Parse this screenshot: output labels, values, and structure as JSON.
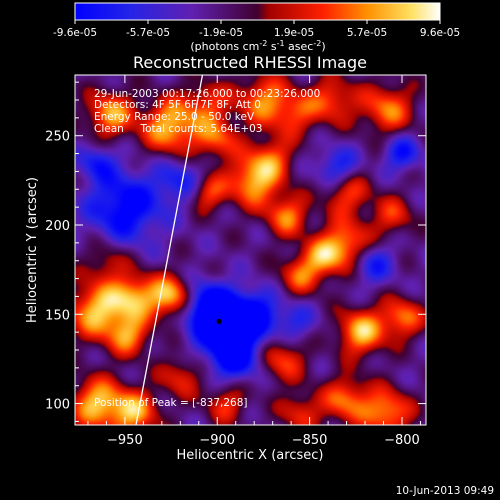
{
  "chart_data": {
    "type": "heatmap",
    "title": "Reconstructed RHESSI Image",
    "xlabel": "Heliocentric X (arcsec)",
    "ylabel": "Heliocentric Y (arcsec)",
    "xlim": [
      -977,
      -787
    ],
    "ylim": [
      88,
      284
    ],
    "x_ticks": [
      -950,
      -900,
      -850,
      -800
    ],
    "y_ticks": [
      100,
      150,
      200,
      250
    ],
    "colorbar": {
      "ticks": [
        "-9.6e-05",
        "-5.7e-05",
        "-1.9e-05",
        "1.9e-05",
        "5.7e-05",
        "9.6e-05"
      ],
      "label": "(photons cm",
      "label_sup1": "-2",
      "label_mid": " s",
      "label_sup2": "-1",
      "label_end": " asec",
      "label_sup3": "-2",
      "label_close": ")",
      "range": [
        -9.6e-05,
        9.6e-05
      ]
    },
    "annotations": [
      "29-Jun-2003 00:17:26.000 to 00:23:26.000",
      "Detectors: 4F 5F 6F 7F 8F, Att 0",
      "Energy Range: 25.0 - 50.0 keV",
      "Clean     Total counts: 5.64E+03"
    ],
    "peak_label": "Position of Peak = [-837,268]",
    "peak": [
      -837,
      268
    ],
    "limb_line": [
      [
        -944,
        88
      ],
      [
        -908,
        284
      ]
    ],
    "dot": [
      -899,
      146
    ],
    "blobs": [
      [
        -958,
        262,
        9,
        0.8
      ],
      [
        -925,
        255,
        11,
        0.9
      ],
      [
        -905,
        268,
        9,
        0.5
      ],
      [
        -900,
        248,
        8,
        0.6
      ],
      [
        -875,
        270,
        10,
        0.7
      ],
      [
        -858,
        262,
        9,
        0.5
      ],
      [
        -838,
        270,
        9,
        0.6
      ],
      [
        -808,
        265,
        10,
        0.7
      ],
      [
        -905,
        218,
        7,
        0.6
      ],
      [
        -880,
        225,
        10,
        0.9
      ],
      [
        -870,
        238,
        8,
        0.5
      ],
      [
        -862,
        205,
        8,
        0.7
      ],
      [
        -830,
        218,
        9,
        0.6
      ],
      [
        -830,
        190,
        9,
        0.7
      ],
      [
        -805,
        205,
        8,
        0.5
      ],
      [
        -960,
        180,
        8,
        0.4
      ],
      [
        -855,
        172,
        8,
        0.6
      ],
      [
        -842,
        182,
        8,
        0.7
      ],
      [
        -965,
        152,
        11,
        0.9
      ],
      [
        -945,
        160,
        9,
        0.8
      ],
      [
        -925,
        160,
        8,
        0.9
      ],
      [
        -948,
        138,
        8,
        0.7
      ],
      [
        -865,
        125,
        9,
        0.6
      ],
      [
        -822,
        140,
        9,
        0.9
      ],
      [
        -800,
        148,
        8,
        0.7
      ],
      [
        -920,
        115,
        8,
        0.5
      ],
      [
        -965,
        100,
        10,
        0.9
      ],
      [
        -945,
        95,
        9,
        0.8
      ],
      [
        -830,
        102,
        9,
        0.7
      ],
      [
        -808,
        95,
        9,
        0.8
      ],
      [
        -855,
        95,
        8,
        0.5
      ],
      [
        -895,
        100,
        8,
        0.5
      ],
      [
        -950,
        210,
        14,
        -0.8
      ],
      [
        -920,
        225,
        9,
        -0.5
      ],
      [
        -965,
        235,
        7,
        -0.5
      ],
      [
        -895,
        142,
        12,
        -1.0
      ],
      [
        -905,
        155,
        9,
        -0.8
      ],
      [
        -880,
        150,
        9,
        -0.7
      ],
      [
        -890,
        125,
        9,
        -0.7
      ],
      [
        -858,
        145,
        8,
        -0.4
      ],
      [
        -835,
        232,
        8,
        -0.6
      ],
      [
        -815,
        178,
        8,
        -0.5
      ],
      [
        -800,
        240,
        7,
        -0.6
      ]
    ]
  },
  "footer": {
    "timestamp": "10-Jun-2013 09:49"
  }
}
